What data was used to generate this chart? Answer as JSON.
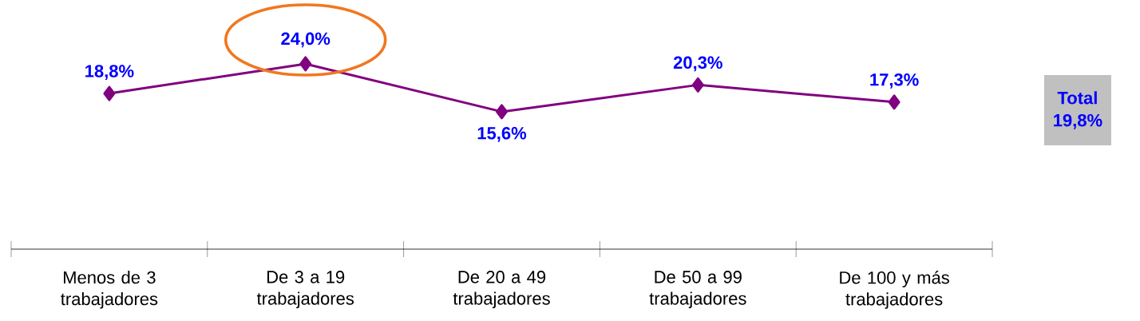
{
  "chart_data": {
    "type": "line",
    "categories": [
      "Menos de 3 trabajadores",
      "De 3 a 19 trabajadores",
      "De 20 a 49 trabajadores",
      "De 50 a 99 trabajadores",
      "De 100 y más trabajadores"
    ],
    "series": [
      {
        "color": "#800080",
        "values": [
          18.8,
          24.0,
          15.6,
          20.3,
          17.3
        ],
        "value_labels": [
          "18,8%",
          "24,0%",
          "15,6%",
          "20,3%",
          "17,3%"
        ]
      }
    ],
    "tick_labels": "x",
    "marker": "diamond",
    "line_style": "solid",
    "annotations": [
      "Total 19,8%"
    ]
  }
}
